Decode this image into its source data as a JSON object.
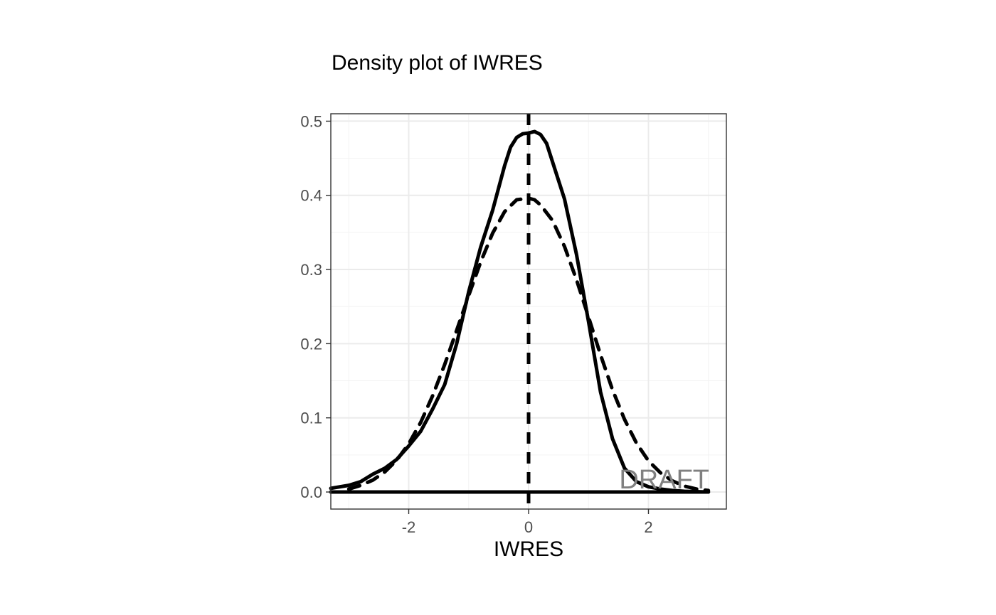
{
  "chart_data": {
    "type": "line",
    "title": "Density plot of IWRES",
    "xlabel": "IWRES",
    "ylabel": "",
    "xlim": [
      -3.3,
      3.3
    ],
    "ylim": [
      -0.023,
      0.51
    ],
    "x_ticks": [
      -2,
      0,
      2
    ],
    "x_tick_labels": [
      "-2",
      "0",
      "2"
    ],
    "y_ticks": [
      0.0,
      0.1,
      0.2,
      0.3,
      0.4,
      0.5
    ],
    "y_tick_labels": [
      "0.0",
      "0.1",
      "0.2",
      "0.3",
      "0.4",
      "0.5"
    ],
    "grid": true,
    "watermark": "DRAFT",
    "series": [
      {
        "style": "solid",
        "x": [
          -3.3,
          -3.0,
          -2.8,
          -2.6,
          -2.4,
          -2.2,
          -2.0,
          -1.8,
          -1.6,
          -1.4,
          -1.2,
          -1.0,
          -0.8,
          -0.6,
          -0.4,
          -0.3,
          -0.2,
          -0.1,
          0.0,
          0.1,
          0.2,
          0.3,
          0.4,
          0.6,
          0.8,
          1.0,
          1.2,
          1.4,
          1.6,
          1.8,
          2.0,
          2.2,
          2.4,
          2.6,
          2.8,
          3.0
        ],
        "y": [
          0.005,
          0.009,
          0.014,
          0.024,
          0.032,
          0.044,
          0.062,
          0.082,
          0.112,
          0.145,
          0.2,
          0.27,
          0.33,
          0.38,
          0.44,
          0.465,
          0.478,
          0.483,
          0.484,
          0.486,
          0.482,
          0.47,
          0.445,
          0.395,
          0.32,
          0.23,
          0.135,
          0.072,
          0.032,
          0.014,
          0.007,
          0.004,
          0.002,
          0.001,
          0.0005,
          0.0
        ]
      },
      {
        "style": "dashed",
        "x": [
          -3.0,
          -2.8,
          -2.6,
          -2.4,
          -2.2,
          -2.0,
          -1.8,
          -1.6,
          -1.4,
          -1.2,
          -1.0,
          -0.8,
          -0.6,
          -0.4,
          -0.2,
          0.0,
          0.1,
          0.2,
          0.4,
          0.6,
          0.8,
          1.0,
          1.2,
          1.4,
          1.6,
          1.8,
          2.0,
          2.2,
          2.4,
          2.6,
          2.8,
          3.0
        ],
        "y": [
          0.004,
          0.009,
          0.016,
          0.027,
          0.043,
          0.065,
          0.094,
          0.13,
          0.172,
          0.218,
          0.265,
          0.31,
          0.349,
          0.378,
          0.394,
          0.396,
          0.394,
          0.387,
          0.366,
          0.331,
          0.286,
          0.236,
          0.185,
          0.138,
          0.098,
          0.066,
          0.042,
          0.026,
          0.015,
          0.008,
          0.004,
          0.002
        ]
      }
    ],
    "reference_lines": [
      {
        "orientation": "vertical",
        "x": 0,
        "style": "dashed"
      },
      {
        "orientation": "horizontal",
        "y": 0,
        "style": "solid",
        "x_range": [
          -3.3,
          3.0
        ]
      }
    ]
  }
}
